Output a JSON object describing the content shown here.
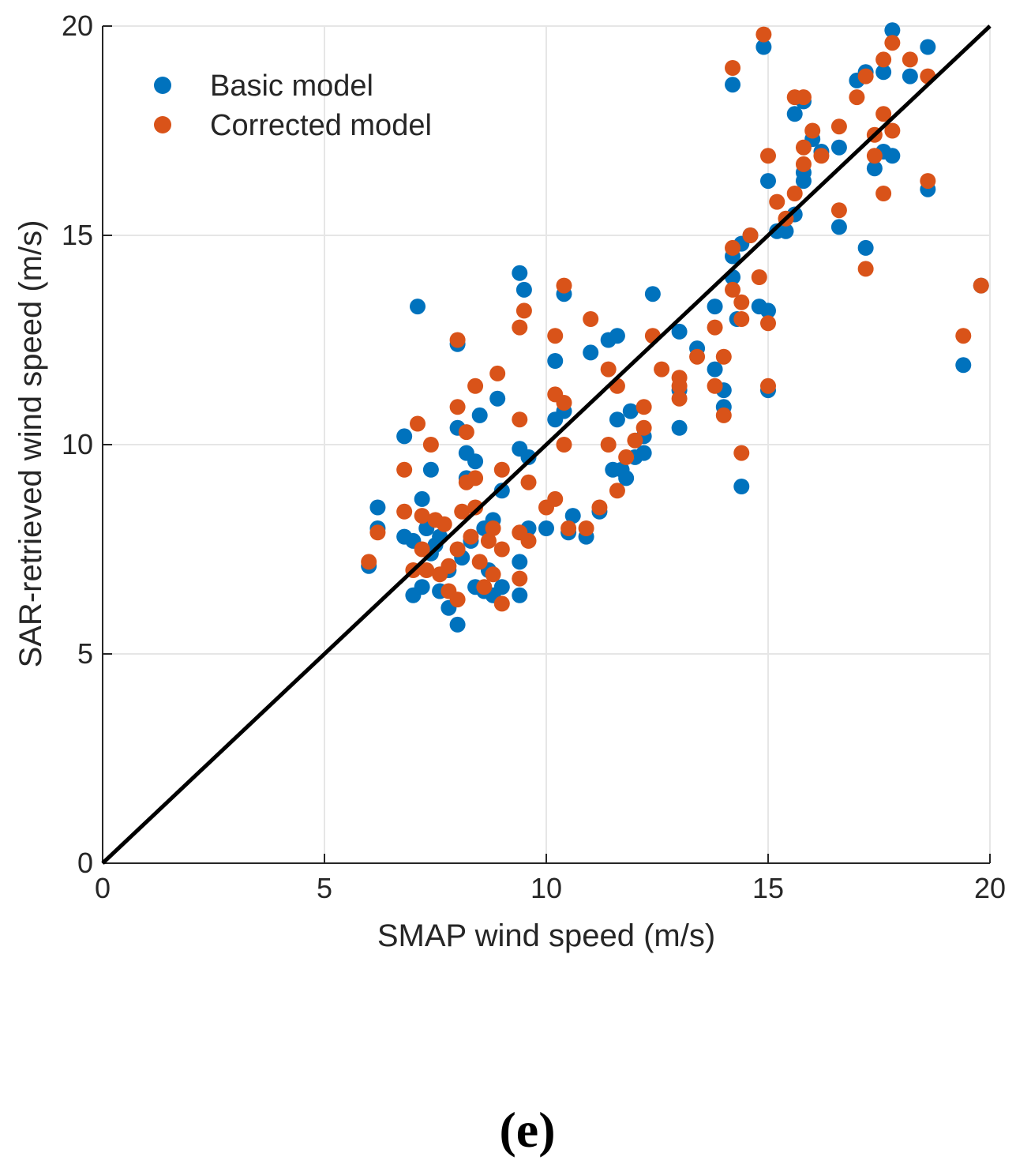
{
  "chart_data": {
    "type": "scatter",
    "title": "",
    "xlabel": "SMAP wind speed (m/s)",
    "ylabel": "SAR-retrieved wind speed (m/s)",
    "xlim": [
      0,
      20
    ],
    "ylim": [
      0,
      20
    ],
    "xticks": [
      0,
      5,
      10,
      15,
      20
    ],
    "yticks": [
      0,
      5,
      10,
      15,
      20
    ],
    "grid": true,
    "legend_position": "top-left",
    "reference_line": {
      "x": [
        0,
        20
      ],
      "y": [
        0,
        20
      ],
      "color": "#000000"
    },
    "panel_label": "(e)",
    "series": [
      {
        "name": "Basic model",
        "color": "#0072BD",
        "points": [
          [
            6.0,
            7.1
          ],
          [
            6.2,
            8.0
          ],
          [
            6.2,
            8.5
          ],
          [
            6.8,
            7.8
          ],
          [
            6.8,
            10.2
          ],
          [
            7.0,
            6.4
          ],
          [
            7.0,
            7.7
          ],
          [
            7.1,
            13.3
          ],
          [
            7.2,
            6.6
          ],
          [
            7.2,
            8.7
          ],
          [
            7.3,
            8.0
          ],
          [
            7.4,
            9.4
          ],
          [
            7.4,
            7.4
          ],
          [
            7.5,
            7.6
          ],
          [
            7.6,
            6.5
          ],
          [
            7.6,
            7.8
          ],
          [
            7.8,
            6.1
          ],
          [
            7.8,
            7.0
          ],
          [
            8.0,
            5.7
          ],
          [
            8.0,
            10.4
          ],
          [
            8.0,
            12.4
          ],
          [
            8.1,
            7.3
          ],
          [
            8.2,
            9.8
          ],
          [
            8.2,
            9.2
          ],
          [
            8.3,
            7.7
          ],
          [
            8.4,
            9.6
          ],
          [
            8.4,
            6.6
          ],
          [
            8.5,
            10.7
          ],
          [
            8.6,
            6.5
          ],
          [
            8.6,
            8.0
          ],
          [
            8.7,
            7.0
          ],
          [
            8.8,
            8.2
          ],
          [
            8.8,
            6.4
          ],
          [
            8.9,
            11.1
          ],
          [
            9.0,
            8.9
          ],
          [
            9.0,
            6.6
          ],
          [
            9.4,
            14.1
          ],
          [
            9.4,
            9.9
          ],
          [
            9.4,
            6.4
          ],
          [
            9.4,
            7.2
          ],
          [
            9.5,
            13.7
          ],
          [
            9.6,
            9.7
          ],
          [
            9.6,
            8.0
          ],
          [
            10.0,
            8.0
          ],
          [
            10.2,
            12.0
          ],
          [
            10.2,
            10.6
          ],
          [
            10.4,
            10.8
          ],
          [
            10.4,
            13.6
          ],
          [
            10.5,
            7.9
          ],
          [
            10.6,
            8.3
          ],
          [
            10.9,
            7.8
          ],
          [
            11.0,
            12.2
          ],
          [
            11.2,
            8.4
          ],
          [
            11.4,
            12.5
          ],
          [
            11.5,
            9.4
          ],
          [
            11.6,
            12.6
          ],
          [
            11.6,
            10.6
          ],
          [
            11.7,
            9.4
          ],
          [
            11.8,
            9.2
          ],
          [
            11.9,
            10.8
          ],
          [
            12.0,
            9.7
          ],
          [
            12.2,
            9.8
          ],
          [
            12.2,
            10.2
          ],
          [
            12.4,
            13.6
          ],
          [
            13.0,
            12.7
          ],
          [
            13.0,
            10.4
          ],
          [
            13.0,
            11.3
          ],
          [
            13.4,
            12.3
          ],
          [
            13.8,
            13.3
          ],
          [
            13.8,
            11.8
          ],
          [
            14.0,
            10.9
          ],
          [
            14.0,
            11.3
          ],
          [
            14.2,
            14.0
          ],
          [
            14.2,
            14.5
          ],
          [
            14.2,
            18.6
          ],
          [
            14.3,
            13.0
          ],
          [
            14.4,
            9.0
          ],
          [
            14.4,
            14.8
          ],
          [
            14.6,
            15.0
          ],
          [
            14.8,
            13.3
          ],
          [
            14.9,
            19.5
          ],
          [
            15.0,
            13.2
          ],
          [
            15.0,
            11.3
          ],
          [
            15.0,
            16.3
          ],
          [
            15.2,
            15.1
          ],
          [
            15.4,
            15.1
          ],
          [
            15.6,
            17.9
          ],
          [
            15.6,
            15.5
          ],
          [
            15.8,
            18.2
          ],
          [
            15.8,
            16.5
          ],
          [
            15.8,
            16.3
          ],
          [
            16.0,
            17.3
          ],
          [
            16.2,
            17.0
          ],
          [
            16.6,
            17.1
          ],
          [
            16.6,
            15.2
          ],
          [
            17.0,
            18.7
          ],
          [
            17.2,
            18.9
          ],
          [
            17.2,
            14.7
          ],
          [
            17.4,
            16.6
          ],
          [
            17.6,
            18.9
          ],
          [
            17.6,
            17.0
          ],
          [
            17.8,
            16.9
          ],
          [
            17.8,
            19.9
          ],
          [
            18.2,
            18.8
          ],
          [
            18.6,
            19.5
          ],
          [
            18.6,
            16.1
          ],
          [
            19.4,
            11.9
          ],
          [
            19.8,
            13.8
          ]
        ]
      },
      {
        "name": "Corrected model",
        "color": "#D95319",
        "points": [
          [
            6.0,
            7.2
          ],
          [
            6.2,
            7.9
          ],
          [
            6.8,
            8.4
          ],
          [
            6.8,
            9.4
          ],
          [
            7.0,
            7.0
          ],
          [
            7.1,
            10.5
          ],
          [
            7.2,
            8.3
          ],
          [
            7.2,
            7.5
          ],
          [
            7.3,
            7.0
          ],
          [
            7.4,
            10.0
          ],
          [
            7.5,
            8.2
          ],
          [
            7.6,
            6.9
          ],
          [
            7.7,
            8.1
          ],
          [
            7.8,
            6.5
          ],
          [
            7.8,
            7.1
          ],
          [
            8.0,
            6.3
          ],
          [
            8.0,
            10.9
          ],
          [
            8.0,
            12.5
          ],
          [
            8.0,
            7.5
          ],
          [
            8.1,
            8.4
          ],
          [
            8.2,
            10.3
          ],
          [
            8.2,
            9.1
          ],
          [
            8.3,
            7.8
          ],
          [
            8.4,
            11.4
          ],
          [
            8.4,
            9.2
          ],
          [
            8.4,
            8.5
          ],
          [
            8.5,
            7.2
          ],
          [
            8.6,
            6.6
          ],
          [
            8.7,
            7.7
          ],
          [
            8.8,
            6.9
          ],
          [
            8.8,
            8.0
          ],
          [
            8.9,
            11.7
          ],
          [
            9.0,
            6.2
          ],
          [
            9.0,
            7.5
          ],
          [
            9.0,
            9.4
          ],
          [
            9.4,
            12.8
          ],
          [
            9.4,
            10.6
          ],
          [
            9.4,
            7.9
          ],
          [
            9.4,
            6.8
          ],
          [
            9.5,
            13.2
          ],
          [
            9.6,
            9.1
          ],
          [
            9.6,
            7.7
          ],
          [
            10.0,
            8.5
          ],
          [
            10.2,
            12.6
          ],
          [
            10.2,
            11.2
          ],
          [
            10.2,
            8.7
          ],
          [
            10.4,
            11.0
          ],
          [
            10.4,
            10.0
          ],
          [
            10.4,
            13.8
          ],
          [
            10.5,
            8.0
          ],
          [
            10.9,
            8.0
          ],
          [
            11.0,
            13.0
          ],
          [
            11.2,
            8.5
          ],
          [
            11.4,
            11.8
          ],
          [
            11.4,
            10.0
          ],
          [
            11.6,
            11.4
          ],
          [
            11.6,
            8.9
          ],
          [
            11.8,
            9.7
          ],
          [
            12.0,
            10.1
          ],
          [
            12.2,
            10.9
          ],
          [
            12.2,
            10.4
          ],
          [
            12.4,
            12.6
          ],
          [
            12.6,
            11.8
          ],
          [
            13.0,
            11.4
          ],
          [
            13.0,
            11.6
          ],
          [
            13.0,
            11.1
          ],
          [
            13.4,
            12.1
          ],
          [
            13.8,
            12.8
          ],
          [
            13.8,
            11.4
          ],
          [
            14.0,
            12.1
          ],
          [
            14.0,
            10.7
          ],
          [
            14.2,
            13.7
          ],
          [
            14.2,
            14.7
          ],
          [
            14.2,
            19.0
          ],
          [
            14.4,
            13.4
          ],
          [
            14.4,
            9.8
          ],
          [
            14.4,
            13.0
          ],
          [
            14.6,
            15.0
          ],
          [
            14.8,
            14.0
          ],
          [
            14.9,
            19.8
          ],
          [
            15.0,
            12.9
          ],
          [
            15.0,
            11.4
          ],
          [
            15.0,
            16.9
          ],
          [
            15.2,
            15.8
          ],
          [
            15.4,
            15.4
          ],
          [
            15.6,
            18.3
          ],
          [
            15.6,
            16.0
          ],
          [
            15.8,
            18.3
          ],
          [
            15.8,
            17.1
          ],
          [
            15.8,
            16.7
          ],
          [
            16.0,
            17.5
          ],
          [
            16.2,
            16.9
          ],
          [
            16.6,
            17.6
          ],
          [
            16.6,
            15.6
          ],
          [
            17.0,
            18.3
          ],
          [
            17.2,
            18.8
          ],
          [
            17.2,
            14.2
          ],
          [
            17.4,
            16.9
          ],
          [
            17.4,
            17.4
          ],
          [
            17.6,
            19.2
          ],
          [
            17.6,
            17.9
          ],
          [
            17.6,
            16.0
          ],
          [
            17.8,
            17.5
          ],
          [
            17.8,
            19.6
          ],
          [
            18.2,
            19.2
          ],
          [
            18.6,
            18.8
          ],
          [
            18.6,
            16.3
          ],
          [
            19.4,
            12.6
          ],
          [
            19.8,
            13.8
          ]
        ]
      }
    ]
  }
}
